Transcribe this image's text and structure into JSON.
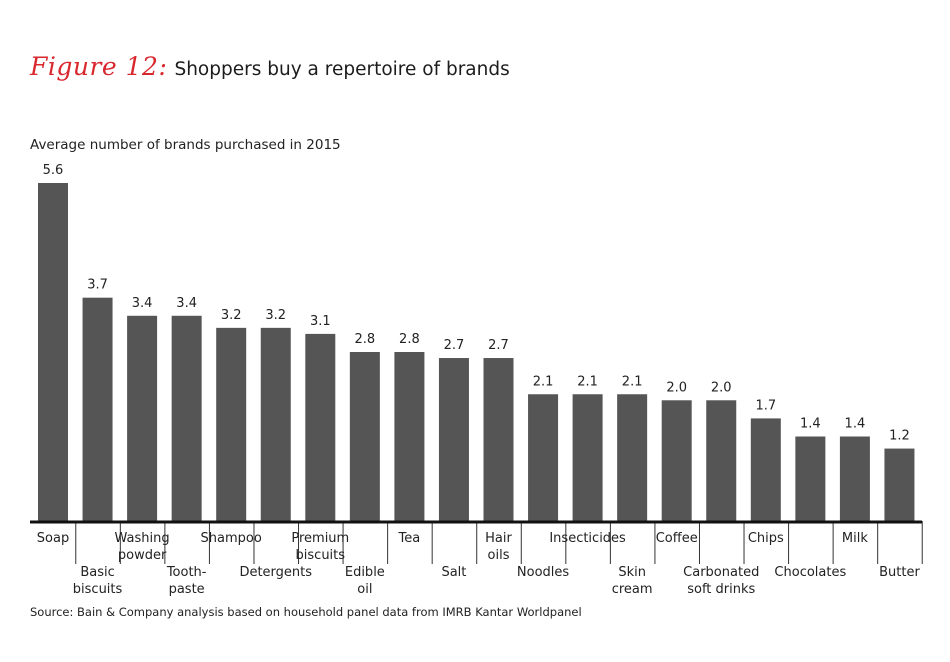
{
  "header": {
    "figure_label": "Figure 12:",
    "title": "Shoppers buy a repertoire of brands"
  },
  "subtitle": "Average number of brands purchased in 2015",
  "source": "Source: Bain & Company analysis based on household panel data from IMRB Kantar Worldpanel",
  "colors": {
    "bar": "#555556",
    "accent": "#d9272e",
    "tick": "#333333"
  },
  "chart_data": {
    "type": "bar",
    "categories": [
      [
        "Soap"
      ],
      [
        "Basic",
        "biscuits"
      ],
      [
        "Washing",
        "powder"
      ],
      [
        "Tooth-",
        "paste"
      ],
      [
        "Shampoo"
      ],
      [
        "Detergents"
      ],
      [
        "Premium",
        "biscuits"
      ],
      [
        "Edible",
        "oil"
      ],
      [
        "Tea"
      ],
      [
        "Salt"
      ],
      [
        "Hair",
        "oils"
      ],
      [
        "Noodles"
      ],
      [
        "Insecticides"
      ],
      [
        "Skin",
        "cream"
      ],
      [
        "Coffee"
      ],
      [
        "Carbonated",
        "soft drinks"
      ],
      [
        "Chips"
      ],
      [
        "Chocolates"
      ],
      [
        "Milk"
      ],
      [
        "Butter"
      ]
    ],
    "values": [
      5.6,
      3.7,
      3.4,
      3.4,
      3.2,
      3.2,
      3.1,
      2.8,
      2.8,
      2.7,
      2.7,
      2.1,
      2.1,
      2.1,
      2.0,
      2.0,
      1.7,
      1.4,
      1.4,
      1.2
    ],
    "value_labels": [
      "5.6",
      "3.7",
      "3.4",
      "3.4",
      "3.2",
      "3.2",
      "3.1",
      "2.8",
      "2.8",
      "2.7",
      "2.7",
      "2.1",
      "2.1",
      "2.1",
      "2.0",
      "2.0",
      "1.7",
      "1.4",
      "1.4",
      "1.2"
    ],
    "label_rows": [
      "upper",
      "lower",
      "upper",
      "lower",
      "upper",
      "lower",
      "upper",
      "lower",
      "upper",
      "lower",
      "upper",
      "lower",
      "upper",
      "lower",
      "upper",
      "lower",
      "upper",
      "lower",
      "upper",
      "lower"
    ],
    "ylim": [
      0,
      5.6
    ],
    "grid": false,
    "legend": "none"
  }
}
